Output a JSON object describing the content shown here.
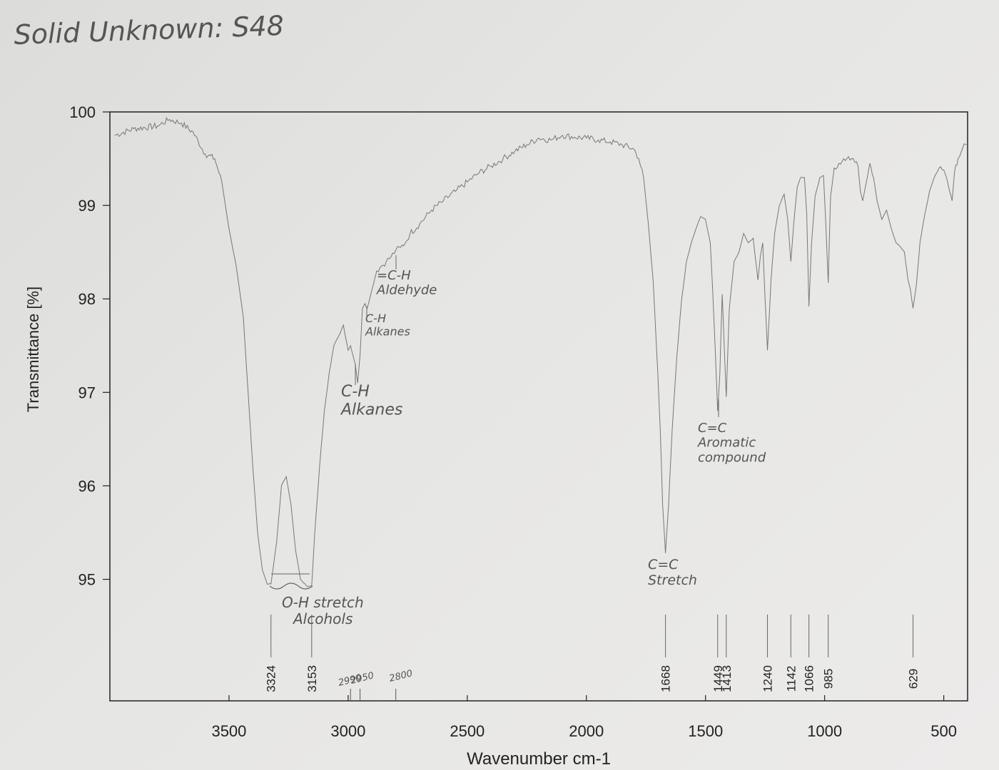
{
  "heading": "Solid Unknown: S48",
  "chart_data": {
    "type": "line",
    "xlabel": "Wavenumber cm-1",
    "ylabel": "Transmittance [%]",
    "xlim": [
      4000,
      400
    ],
    "ylim": [
      93.7,
      100
    ],
    "x_ticks": [
      3500,
      3000,
      2500,
      2000,
      1500,
      1000,
      500
    ],
    "x_tick_labels": [
      "3500",
      "3000",
      "2500",
      "2000",
      "1500",
      "1000",
      "500"
    ],
    "y_ticks": [
      95,
      96,
      97,
      98,
      99,
      100
    ],
    "y_tick_labels": [
      "95",
      "96",
      "97",
      "98",
      "99",
      "100"
    ],
    "x_axis_reversed": true,
    "grid": false,
    "series": [
      {
        "x": [
          3980,
          3900,
          3800,
          3750,
          3700,
          3650,
          3600,
          3560,
          3530,
          3500,
          3470,
          3440,
          3420,
          3400,
          3380,
          3360,
          3340,
          3324,
          3300,
          3280,
          3260,
          3240,
          3220,
          3200,
          3180,
          3170,
          3153,
          3140,
          3120,
          3100,
          3080,
          3060,
          3040,
          3020,
          3000,
          2990,
          2970,
          2960,
          2950,
          2940,
          2930,
          2920,
          2900,
          2880,
          2860,
          2840,
          2820,
          2800,
          2780,
          2760,
          2740,
          2700,
          2650,
          2600,
          2550,
          2500,
          2450,
          2400,
          2350,
          2300,
          2250,
          2200,
          2150,
          2100,
          2050,
          2000,
          1950,
          1900,
          1850,
          1800,
          1780,
          1760,
          1740,
          1720,
          1700,
          1690,
          1680,
          1668,
          1655,
          1640,
          1620,
          1600,
          1580,
          1560,
          1540,
          1520,
          1500,
          1480,
          1470,
          1460,
          1449,
          1440,
          1430,
          1420,
          1413,
          1400,
          1380,
          1360,
          1340,
          1320,
          1300,
          1280,
          1270,
          1260,
          1250,
          1240,
          1225,
          1210,
          1190,
          1170,
          1155,
          1142,
          1130,
          1115,
          1100,
          1085,
          1075,
          1066,
          1055,
          1040,
          1020,
          1005,
          995,
          985,
          975,
          960,
          940,
          920,
          900,
          880,
          860,
          850,
          840,
          825,
          810,
          795,
          780,
          760,
          740,
          720,
          700,
          680,
          665,
          650,
          640,
          629,
          615,
          600,
          580,
          560,
          540,
          520,
          500,
          480,
          465,
          455,
          440,
          420,
          405
        ],
        "y": [
          99.75,
          99.82,
          99.85,
          99.92,
          99.88,
          99.78,
          99.55,
          99.5,
          99.25,
          98.75,
          98.35,
          97.8,
          97.0,
          96.2,
          95.5,
          95.1,
          94.95,
          94.95,
          95.4,
          96.0,
          96.1,
          95.8,
          95.3,
          95.0,
          94.95,
          94.92,
          94.93,
          95.5,
          96.2,
          96.8,
          97.2,
          97.5,
          97.6,
          97.72,
          97.45,
          97.5,
          97.3,
          97.1,
          97.4,
          97.9,
          97.95,
          97.9,
          98.1,
          98.3,
          98.35,
          98.4,
          98.45,
          98.52,
          98.55,
          98.6,
          98.7,
          98.8,
          98.95,
          99.05,
          99.15,
          99.25,
          99.35,
          99.42,
          99.5,
          99.58,
          99.65,
          99.72,
          99.7,
          99.75,
          99.73,
          99.72,
          99.7,
          99.68,
          99.65,
          99.6,
          99.5,
          99.3,
          98.8,
          98.2,
          97.2,
          96.6,
          95.8,
          95.28,
          95.8,
          96.6,
          97.4,
          98.0,
          98.4,
          98.6,
          98.75,
          98.88,
          98.85,
          98.6,
          98.1,
          97.5,
          96.8,
          97.2,
          98.05,
          97.4,
          96.95,
          97.9,
          98.4,
          98.5,
          98.7,
          98.6,
          98.65,
          98.2,
          98.45,
          98.6,
          98.0,
          97.45,
          98.2,
          98.7,
          99.0,
          99.12,
          98.85,
          98.4,
          98.8,
          99.2,
          99.3,
          99.3,
          98.9,
          97.92,
          98.6,
          99.1,
          99.3,
          99.32,
          98.8,
          98.17,
          99.1,
          99.4,
          99.45,
          99.5,
          99.52,
          99.5,
          99.42,
          99.15,
          99.05,
          99.25,
          99.45,
          99.3,
          99.05,
          98.85,
          98.95,
          98.75,
          98.6,
          98.55,
          98.5,
          98.2,
          98.1,
          97.9,
          98.15,
          98.6,
          98.9,
          99.15,
          99.3,
          99.4,
          99.38,
          99.2,
          99.05,
          99.35,
          99.5,
          99.62,
          99.65
        ]
      }
    ],
    "peak_markers": [
      {
        "x": 3324,
        "label": "3324"
      },
      {
        "x": 3153,
        "label": "3153"
      },
      {
        "x": 1668,
        "label": "1668"
      },
      {
        "x": 1449,
        "label": "1449"
      },
      {
        "x": 1413,
        "label": "1413"
      },
      {
        "x": 1240,
        "label": "1240"
      },
      {
        "x": 1142,
        "label": "1142"
      },
      {
        "x": 1066,
        "label": "1066"
      },
      {
        "x": 985,
        "label": "985"
      },
      {
        "x": 629,
        "label": "629"
      }
    ],
    "handwritten_markers": [
      {
        "x": 2990,
        "label": "2990"
      },
      {
        "x": 2950,
        "label": "2950"
      },
      {
        "x": 2800,
        "label": "2800"
      }
    ],
    "annotations": [
      {
        "lines": [
          "O-H stretch",
          "Alcohols"
        ],
        "x": 3240
      },
      {
        "lines": [
          "C-H",
          "Alkanes"
        ],
        "x": 2975
      },
      {
        "lines": [
          "C-H",
          "Alkanes"
        ],
        "x": 2905
      },
      {
        "lines": [
          "=C-H",
          "Aldehyde"
        ],
        "x": 2820
      },
      {
        "lines": [
          "C=C",
          "Stretch"
        ],
        "x": 1640
      },
      {
        "lines": [
          "C=C",
          "Aromatic",
          "compound"
        ],
        "x": 1420
      }
    ]
  }
}
